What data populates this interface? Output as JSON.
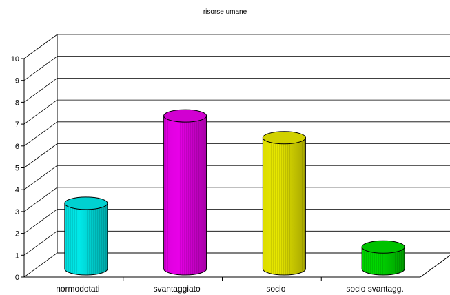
{
  "chart_data": {
    "type": "bar",
    "title": "risorse umane",
    "xlabel": "",
    "ylabel": "",
    "categories": [
      "normodotati",
      "svantaggiato",
      "socio",
      "socio svantagg."
    ],
    "values": [
      3,
      7,
      6,
      1
    ],
    "colors": [
      "#00E8E8",
      "#E800E8",
      "#E8E800",
      "#00D800"
    ],
    "ylim": [
      0,
      10
    ],
    "y_ticks": [
      "0",
      "1",
      "2",
      "3",
      "4",
      "5",
      "6",
      "7",
      "8",
      "9",
      "10"
    ],
    "grid": true,
    "legend": "none",
    "style": "3d-cylinder"
  }
}
